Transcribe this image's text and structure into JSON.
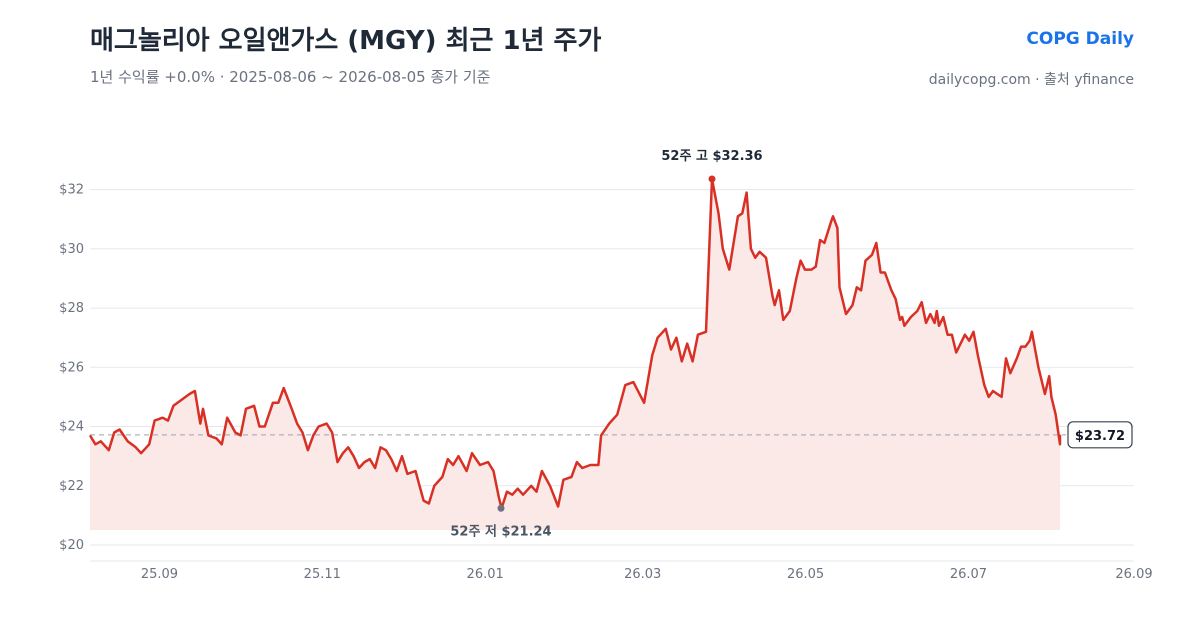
{
  "header": {
    "title": "매그놀리아 오일앤가스 (MGY) 최근 1년 주가",
    "subtitle": "1년 수익률 +0.0%  ·  2025-08-06 ~ 2026-08-05 종가 기준",
    "brand": "COPG Daily",
    "source": "dailycopg.com · 출처 yfinance"
  },
  "colors": {
    "line": "#d93025",
    "area": "#fbe9e7",
    "grid": "#e5e7eb",
    "reference": "#9ca3af",
    "high_marker": "#d93025",
    "low_marker": "#6b7280",
    "brand": "#1a73e8"
  },
  "chart_data": {
    "type": "line",
    "x_range": [
      "2025-08-06",
      "2026-09-01"
    ],
    "ylim": [
      20,
      33
    ],
    "y_ticks": [
      {
        "value": 20,
        "label": "$20"
      },
      {
        "value": 22,
        "label": "$22"
      },
      {
        "value": 24,
        "label": "$24"
      },
      {
        "value": 26,
        "label": "$26"
      },
      {
        "value": 28,
        "label": "$28"
      },
      {
        "value": 30,
        "label": "$30"
      },
      {
        "value": 32,
        "label": "$32"
      }
    ],
    "x_ticks": [
      {
        "date": "2025-09-01",
        "label": "25.09"
      },
      {
        "date": "2025-11-01",
        "label": "25.11"
      },
      {
        "date": "2026-01-01",
        "label": "26.01"
      },
      {
        "date": "2026-03-01",
        "label": "26.03"
      },
      {
        "date": "2026-05-01",
        "label": "26.05"
      },
      {
        "date": "2026-07-01",
        "label": "26.07"
      },
      {
        "date": "2026-09-01",
        "label": "26.09"
      }
    ],
    "grid": true,
    "reference_value": 23.72,
    "last_value_label": "$23.72",
    "high": {
      "date": "2026-03-24",
      "value": 32.36,
      "label": "52주 고 $32.36"
    },
    "low": {
      "date": "2026-01-06",
      "value": 21.24,
      "label": "52주 저 $21.24"
    },
    "series": [
      {
        "points": [
          [
            "2025-08-06",
            23.7
          ],
          [
            "2025-08-08",
            23.4
          ],
          [
            "2025-08-10",
            23.5
          ],
          [
            "2025-08-13",
            23.2
          ],
          [
            "2025-08-15",
            23.8
          ],
          [
            "2025-08-17",
            23.9
          ],
          [
            "2025-08-20",
            23.5
          ],
          [
            "2025-08-23",
            23.3
          ],
          [
            "2025-08-25",
            23.1
          ],
          [
            "2025-08-28",
            23.4
          ],
          [
            "2025-08-30",
            24.2
          ],
          [
            "2025-09-02",
            24.3
          ],
          [
            "2025-09-04",
            24.2
          ],
          [
            "2025-09-06",
            24.7
          ],
          [
            "2025-09-09",
            24.9
          ],
          [
            "2025-09-12",
            25.1
          ],
          [
            "2025-09-14",
            25.2
          ],
          [
            "2025-09-16",
            24.1
          ],
          [
            "2025-09-17",
            24.6
          ],
          [
            "2025-09-19",
            23.7
          ],
          [
            "2025-09-22",
            23.6
          ],
          [
            "2025-09-24",
            23.4
          ],
          [
            "2025-09-26",
            24.3
          ],
          [
            "2025-09-29",
            23.8
          ],
          [
            "2025-10-01",
            23.7
          ],
          [
            "2025-10-03",
            24.6
          ],
          [
            "2025-10-06",
            24.7
          ],
          [
            "2025-10-08",
            24.0
          ],
          [
            "2025-10-10",
            24.0
          ],
          [
            "2025-10-13",
            24.8
          ],
          [
            "2025-10-15",
            24.8
          ],
          [
            "2025-10-17",
            25.3
          ],
          [
            "2025-10-20",
            24.6
          ],
          [
            "2025-10-22",
            24.1
          ],
          [
            "2025-10-24",
            23.8
          ],
          [
            "2025-10-26",
            23.2
          ],
          [
            "2025-10-28",
            23.7
          ],
          [
            "2025-10-30",
            24.0
          ],
          [
            "2025-11-02",
            24.1
          ],
          [
            "2025-11-04",
            23.8
          ],
          [
            "2025-11-06",
            22.8
          ],
          [
            "2025-11-08",
            23.1
          ],
          [
            "2025-11-10",
            23.3
          ],
          [
            "2025-11-12",
            23.0
          ],
          [
            "2025-11-14",
            22.6
          ],
          [
            "2025-11-16",
            22.8
          ],
          [
            "2025-11-18",
            22.9
          ],
          [
            "2025-11-20",
            22.6
          ],
          [
            "2025-11-22",
            23.3
          ],
          [
            "2025-11-24",
            23.2
          ],
          [
            "2025-11-26",
            22.9
          ],
          [
            "2025-11-28",
            22.5
          ],
          [
            "2025-11-30",
            23.0
          ],
          [
            "2025-12-02",
            22.4
          ],
          [
            "2025-12-05",
            22.5
          ],
          [
            "2025-12-08",
            21.5
          ],
          [
            "2025-12-10",
            21.4
          ],
          [
            "2025-12-12",
            22.0
          ],
          [
            "2025-12-15",
            22.3
          ],
          [
            "2025-12-17",
            22.9
          ],
          [
            "2025-12-19",
            22.7
          ],
          [
            "2025-12-21",
            23.0
          ],
          [
            "2025-12-24",
            22.5
          ],
          [
            "2025-12-26",
            23.1
          ],
          [
            "2025-12-29",
            22.7
          ],
          [
            "2026-01-01",
            22.8
          ],
          [
            "2026-01-03",
            22.5
          ],
          [
            "2026-01-05",
            21.6
          ],
          [
            "2026-01-06",
            21.24
          ],
          [
            "2026-01-08",
            21.8
          ],
          [
            "2026-01-10",
            21.7
          ],
          [
            "2026-01-12",
            21.9
          ],
          [
            "2026-01-14",
            21.7
          ],
          [
            "2026-01-17",
            22.0
          ],
          [
            "2026-01-19",
            21.8
          ],
          [
            "2026-01-21",
            22.5
          ],
          [
            "2026-01-24",
            22.0
          ],
          [
            "2026-01-27",
            21.3
          ],
          [
            "2026-01-29",
            22.2
          ],
          [
            "2026-02-01",
            22.3
          ],
          [
            "2026-02-03",
            22.8
          ],
          [
            "2026-02-05",
            22.6
          ],
          [
            "2026-02-08",
            22.7
          ],
          [
            "2026-02-11",
            22.7
          ],
          [
            "2026-02-12",
            23.7
          ],
          [
            "2026-02-15",
            24.1
          ],
          [
            "2026-02-18",
            24.4
          ],
          [
            "2026-02-21",
            25.4
          ],
          [
            "2026-02-24",
            25.5
          ],
          [
            "2026-02-28",
            24.8
          ],
          [
            "2026-03-03",
            26.4
          ],
          [
            "2026-03-05",
            27.0
          ],
          [
            "2026-03-08",
            27.3
          ],
          [
            "2026-03-10",
            26.6
          ],
          [
            "2026-03-12",
            27.0
          ],
          [
            "2026-03-14",
            26.2
          ],
          [
            "2026-03-16",
            26.8
          ],
          [
            "2026-03-18",
            26.2
          ],
          [
            "2026-03-20",
            27.1
          ],
          [
            "2026-03-23",
            27.2
          ],
          [
            "2026-03-26",
            27.0
          ],
          [
            "2026-03-29",
            27.9
          ],
          [
            "2026-04-01",
            28.5
          ],
          [
            "2026-04-03",
            29.2
          ],
          [
            "2026-04-06",
            29.1
          ],
          [
            "2026-04-08",
            28.9
          ],
          [
            "2026-04-10",
            29.4
          ],
          [
            "2026-04-13",
            29.3
          ],
          [
            "2026-04-15",
            30.2
          ],
          [
            "2026-04-18",
            30.9
          ],
          [
            "2026-04-21",
            31.0
          ],
          [
            "2026-04-24",
            31.4
          ],
          [
            "2026-03-24",
            32.36
          ]
        ]
      }
    ]
  },
  "chart_raw": [
    [
      "2025-08-06",
      23.7
    ],
    [
      "2025-08-08",
      23.4
    ],
    [
      "2025-08-10",
      23.5
    ],
    [
      "2025-08-13",
      23.2
    ],
    [
      "2025-08-15",
      23.8
    ],
    [
      "2025-08-17",
      23.9
    ],
    [
      "2025-08-20",
      23.5
    ],
    [
      "2025-08-23",
      23.3
    ],
    [
      "2025-08-25",
      23.1
    ],
    [
      "2025-08-28",
      23.4
    ],
    [
      "2025-08-30",
      24.2
    ],
    [
      "2025-09-02",
      24.3
    ],
    [
      "2025-09-04",
      24.2
    ],
    [
      "2025-09-06",
      24.7
    ],
    [
      "2025-09-09",
      24.9
    ],
    [
      "2025-09-12",
      25.1
    ],
    [
      "2025-09-14",
      25.2
    ],
    [
      "2025-09-16",
      24.1
    ],
    [
      "2025-09-17",
      24.6
    ],
    [
      "2025-09-19",
      23.7
    ],
    [
      "2025-09-22",
      23.6
    ],
    [
      "2025-09-24",
      23.4
    ],
    [
      "2025-09-26",
      24.3
    ],
    [
      "2025-09-29",
      23.8
    ],
    [
      "2025-10-01",
      23.7
    ],
    [
      "2025-10-03",
      24.6
    ],
    [
      "2025-10-06",
      24.7
    ],
    [
      "2025-10-08",
      24.0
    ],
    [
      "2025-10-10",
      24.0
    ],
    [
      "2025-10-13",
      24.8
    ],
    [
      "2025-10-15",
      24.8
    ],
    [
      "2025-10-17",
      25.3
    ],
    [
      "2025-10-20",
      24.6
    ],
    [
      "2025-10-22",
      24.1
    ],
    [
      "2025-10-24",
      23.8
    ],
    [
      "2025-10-26",
      23.2
    ],
    [
      "2025-10-28",
      23.7
    ],
    [
      "2025-10-30",
      24.0
    ],
    [
      "2025-11-02",
      24.1
    ],
    [
      "2025-11-04",
      23.8
    ],
    [
      "2025-11-06",
      22.8
    ],
    [
      "2025-11-08",
      23.1
    ],
    [
      "2025-11-10",
      23.3
    ],
    [
      "2025-11-12",
      23.0
    ],
    [
      "2025-11-14",
      22.6
    ],
    [
      "2025-11-16",
      22.8
    ],
    [
      "2025-11-18",
      22.9
    ],
    [
      "2025-11-20",
      22.6
    ],
    [
      "2025-11-22",
      23.3
    ],
    [
      "2025-11-24",
      23.2
    ],
    [
      "2025-11-26",
      22.9
    ],
    [
      "2025-11-28",
      22.5
    ],
    [
      "2025-11-30",
      23.0
    ],
    [
      "2025-12-02",
      22.4
    ],
    [
      "2025-12-05",
      22.5
    ],
    [
      "2025-12-08",
      21.5
    ],
    [
      "2025-12-10",
      21.4
    ],
    [
      "2025-12-12",
      22.0
    ],
    [
      "2025-12-15",
      22.3
    ],
    [
      "2025-12-17",
      22.9
    ],
    [
      "2025-12-19",
      22.7
    ],
    [
      "2025-12-21",
      23.0
    ],
    [
      "2025-12-24",
      22.5
    ],
    [
      "2025-12-26",
      23.1
    ],
    [
      "2025-12-29",
      22.7
    ],
    [
      "2026-01-01",
      22.8
    ],
    [
      "2026-01-03",
      22.5
    ],
    [
      "2026-01-05",
      21.6
    ],
    [
      "2026-01-06",
      21.24
    ],
    [
      "2026-01-08",
      21.8
    ],
    [
      "2026-01-10",
      21.7
    ],
    [
      "2026-01-12",
      21.9
    ],
    [
      "2026-01-14",
      21.7
    ],
    [
      "2026-01-17",
      22.0
    ],
    [
      "2026-01-19",
      21.8
    ],
    [
      "2026-01-21",
      22.5
    ],
    [
      "2026-01-24",
      22.0
    ],
    [
      "2026-01-27",
      21.3
    ],
    [
      "2026-01-29",
      22.2
    ],
    [
      "2026-02-01",
      22.3
    ],
    [
      "2026-02-03",
      22.8
    ],
    [
      "2026-02-05",
      22.6
    ],
    [
      "2026-02-08",
      22.7
    ],
    [
      "2026-02-11",
      22.7
    ],
    [
      "2026-02-12",
      23.7
    ],
    [
      "2026-02-15",
      24.1
    ],
    [
      "2026-02-18",
      24.4
    ],
    [
      "2026-02-21",
      25.4
    ],
    [
      "2026-02-24",
      25.5
    ],
    [
      "2026-02-28",
      24.8
    ],
    [
      "2026-03-03",
      26.4
    ],
    [
      "2026-03-05",
      27.0
    ],
    [
      "2026-03-08",
      27.3
    ],
    [
      "2026-03-10",
      26.6
    ],
    [
      "2026-03-12",
      27.0
    ],
    [
      "2026-03-14",
      26.2
    ],
    [
      "2026-03-16",
      26.8
    ],
    [
      "2026-03-18",
      26.2
    ],
    [
      "2026-03-20",
      27.1
    ],
    [
      "2026-03-23",
      27.2
    ]
  ]
}
